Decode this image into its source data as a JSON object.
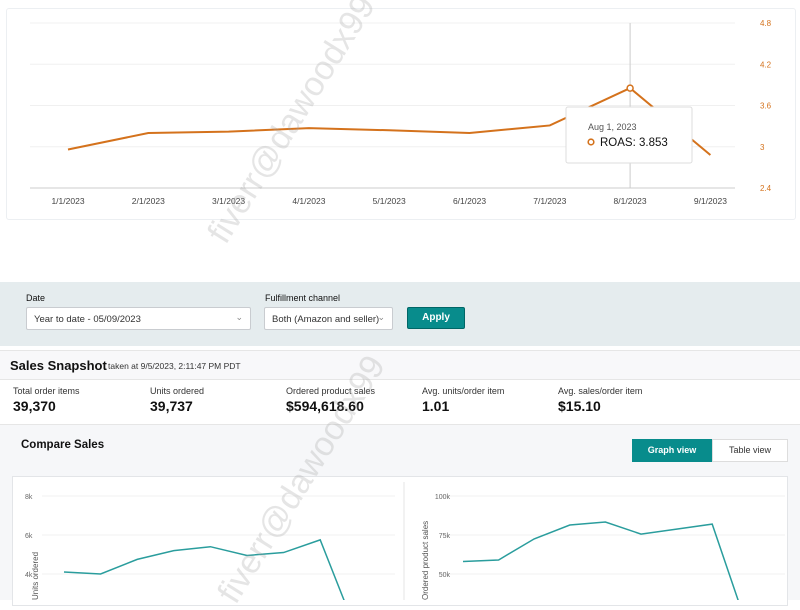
{
  "roas_chart": {
    "chart_data": {
      "type": "line",
      "categories": [
        "1/1/2023",
        "2/1/2023",
        "3/1/2023",
        "4/1/2023",
        "5/1/2023",
        "6/1/2023",
        "7/1/2023",
        "8/1/2023",
        "9/1/2023"
      ],
      "series": [
        {
          "name": "ROAS",
          "values": [
            2.96,
            3.2,
            3.22,
            3.27,
            3.24,
            3.2,
            3.31,
            3.853,
            2.88
          ]
        }
      ],
      "y_ticks": [
        "2.4",
        "3",
        "3.6",
        "4.2",
        "4.8"
      ],
      "ylim": [
        2.4,
        4.8
      ],
      "y_axis_side": "right",
      "grid": true,
      "color": "#d4721c"
    },
    "tooltip": {
      "date": "Aug 1, 2023",
      "label": "ROAS: 3.853"
    }
  },
  "filters": {
    "date_label": "Date",
    "date_value": "Year to date - 05/09/2023",
    "channel_label": "Fulfillment channel",
    "channel_value": "Both (Amazon and seller)",
    "apply": "Apply"
  },
  "snapshot": {
    "title": "Sales Snapshot",
    "taken": "taken at 9/5/2023, 2:11:47 PM PDT",
    "metrics": [
      {
        "label": "Total order items",
        "value": "39,370"
      },
      {
        "label": "Units ordered",
        "value": "39,737"
      },
      {
        "label": "Ordered product sales",
        "value": "$594,618.60"
      },
      {
        "label": "Avg. units/order item",
        "value": "1.01"
      },
      {
        "label": "Avg. sales/order item",
        "value": "$15.10"
      }
    ]
  },
  "compare": {
    "title": "Compare Sales",
    "graph_view": "Graph view",
    "table_view": "Table view"
  },
  "chart_data": [
    {
      "type": "line",
      "ylabel": "Units ordered",
      "y_ticks": [
        "4k",
        "6k",
        "8k"
      ],
      "ylim": [
        0,
        8000
      ],
      "grid": true,
      "color": "#2a9d9d",
      "values": [
        4100,
        4000,
        4750,
        5200,
        5400,
        4950,
        5100,
        5750,
        1000
      ]
    },
    {
      "type": "line",
      "ylabel": "Ordered product sales",
      "y_ticks": [
        "50k",
        "75k",
        "100k"
      ],
      "ylim": [
        0,
        100000
      ],
      "grid": true,
      "color": "#2a9d9d",
      "values": [
        58000,
        59000,
        72500,
        81400,
        83300,
        75600,
        78800,
        82000,
        15000
      ]
    }
  ],
  "watermark": "fiverr@dawoodx99"
}
